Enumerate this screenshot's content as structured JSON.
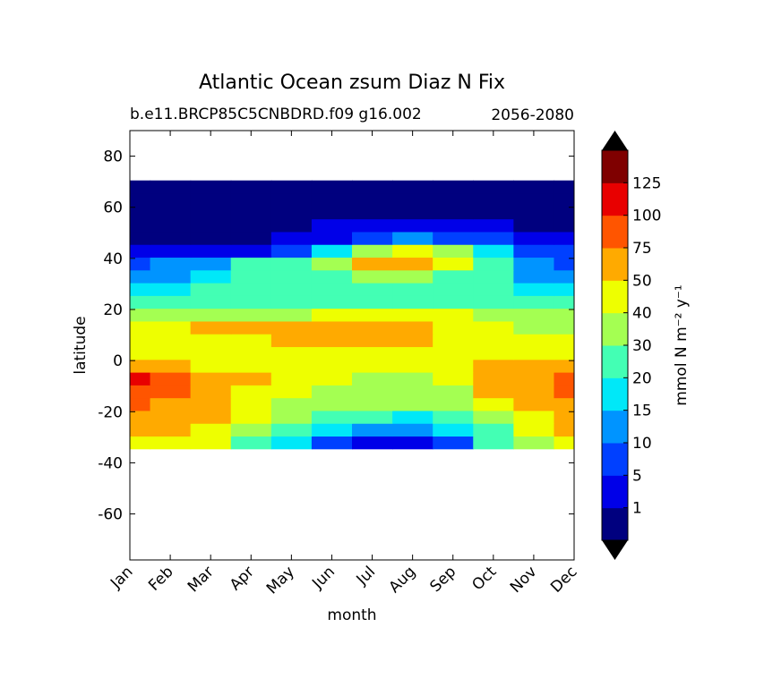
{
  "chart_data": {
    "type": "contourf",
    "title": "Atlantic Ocean zsum Diaz N Fix",
    "subtitle_left": "b.e11.BRCP85C5CNBDRD.f09 g16.002",
    "subtitle_right": "2056-2080",
    "xlabel": "month",
    "ylabel": "latitude",
    "categories": [
      "Jan",
      "Feb",
      "Mar",
      "Apr",
      "May",
      "Jun",
      "Jul",
      "Aug",
      "Sep",
      "Oct",
      "Nov",
      "Dec"
    ],
    "y": [
      -32,
      -27,
      -22,
      -17,
      -12,
      -7,
      -2,
      3,
      8,
      13,
      18,
      23,
      28,
      33,
      38,
      43,
      48,
      53,
      58,
      63,
      68
    ],
    "z": [
      [
        45,
        45,
        40,
        25,
        15,
        8,
        4,
        3,
        8,
        20,
        35,
        45
      ],
      [
        50,
        50,
        45,
        32,
        22,
        15,
        12,
        10,
        15,
        25,
        40,
        50
      ],
      [
        55,
        55,
        50,
        40,
        30,
        25,
        20,
        18,
        22,
        35,
        45,
        55
      ],
      [
        75,
        70,
        55,
        45,
        38,
        30,
        30,
        30,
        32,
        45,
        55,
        70
      ],
      [
        85,
        75,
        60,
        48,
        42,
        38,
        35,
        35,
        38,
        50,
        65,
        80
      ],
      [
        110,
        85,
        65,
        50,
        45,
        40,
        38,
        38,
        40,
        55,
        70,
        80
      ],
      [
        60,
        55,
        48,
        45,
        42,
        40,
        40,
        40,
        42,
        50,
        55,
        58
      ],
      [
        40,
        42,
        44,
        44,
        42,
        42,
        42,
        42,
        42,
        42,
        42,
        42
      ],
      [
        42,
        44,
        45,
        48,
        52,
        55,
        52,
        50,
        46,
        44,
        42,
        40
      ],
      [
        42,
        45,
        55,
        60,
        60,
        62,
        60,
        55,
        48,
        42,
        36,
        35
      ],
      [
        32,
        32,
        33,
        35,
        38,
        40,
        42,
        42,
        40,
        36,
        33,
        32
      ],
      [
        20,
        22,
        24,
        24,
        24,
        25,
        26,
        26,
        26,
        25,
        22,
        20
      ],
      [
        15,
        17,
        20,
        22,
        22,
        24,
        25,
        25,
        24,
        20,
        16,
        15
      ],
      [
        12,
        14,
        16,
        22,
        25,
        28,
        32,
        32,
        28,
        20,
        14,
        13
      ],
      [
        8,
        10,
        12,
        20,
        28,
        35,
        55,
        55,
        40,
        20,
        12,
        9
      ],
      [
        3,
        2,
        1.5,
        3,
        8,
        15,
        35,
        40,
        30,
        15,
        8,
        5
      ],
      [
        0.5,
        0.5,
        0.5,
        0.5,
        2,
        4,
        8,
        10,
        8,
        5,
        3,
        2
      ],
      [
        0.5,
        0.5,
        0.5,
        0.5,
        0.8,
        1.5,
        3,
        3,
        3,
        2,
        0.8,
        0.5
      ],
      [
        0.5,
        0.5,
        0.5,
        0.5,
        0.5,
        0.5,
        0.5,
        0.5,
        0.5,
        0.5,
        0.5,
        0.5
      ],
      [
        0.5,
        0.5,
        0.5,
        0.5,
        0.5,
        0.5,
        0.5,
        0.5,
        0.5,
        0.5,
        0.5,
        0.5
      ],
      [
        0.5,
        0.5,
        0.5,
        0.5,
        0.5,
        0.5,
        0.5,
        0.5,
        0.5,
        0.5,
        0.5,
        0.5
      ]
    ],
    "ylim": [
      -78,
      90
    ],
    "yticks": [
      -60,
      -40,
      -20,
      0,
      20,
      40,
      60,
      80
    ],
    "levels": [
      1,
      5,
      10,
      15,
      20,
      30,
      40,
      50,
      75,
      100,
      125
    ],
    "colors": [
      "#00007f",
      "#0000e8",
      "#0040ff",
      "#0094ff",
      "#00e8f8",
      "#43ffb4",
      "#a4ff52",
      "#eeff00",
      "#ffaa00",
      "#ff5500",
      "#e80000",
      "#7f0000"
    ],
    "colorbar_label": "mmol N m⁻² y⁻¹"
  }
}
